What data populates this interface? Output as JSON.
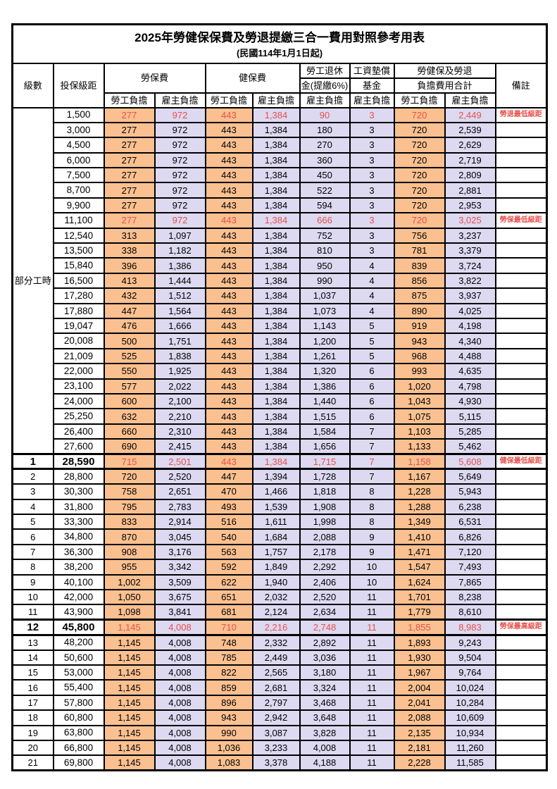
{
  "title": "2025年勞健保保費及勞退提繳三合一費用對照參考用表",
  "subtitle": "(民國114年1月1日起)",
  "colors": {
    "employee_bg": "#FAC090",
    "employer_bg": "#DCD9F1",
    "highlight_red": "#E8504B"
  },
  "header": {
    "level": "級數",
    "salary_bracket": "投保級距",
    "labor_insurance": "勞保費",
    "health_insurance": "健保費",
    "pension_line1": "勞工退休",
    "pension_line2": "金(提繳6%)",
    "wage_fund_line1": "工資墊償",
    "wage_fund_line2": "基金",
    "total_line1": "勞健保及勞退",
    "total_line2": "負擔費用合計",
    "remark": "備註",
    "employee_share": "勞工負擔",
    "employer_share": "雇主負擔"
  },
  "part_time_label": "部分工時",
  "rows": [
    {
      "level": "",
      "salary": "1,500",
      "labor_emp": "277",
      "labor_er": "972",
      "health_emp": "443",
      "health_er": "1,384",
      "pension": "90",
      "fund": "3",
      "total_emp": "720",
      "total_er": "2,449",
      "note": "勞退最低級距",
      "red": true,
      "bold": false,
      "thick_top": false,
      "thick_bottom": false
    },
    {
      "level": "",
      "salary": "3,000",
      "labor_emp": "277",
      "labor_er": "972",
      "health_emp": "443",
      "health_er": "1,384",
      "pension": "180",
      "fund": "3",
      "total_emp": "720",
      "total_er": "2,539",
      "note": "",
      "red": false,
      "bold": false,
      "thick_top": false,
      "thick_bottom": false
    },
    {
      "level": "",
      "salary": "4,500",
      "labor_emp": "277",
      "labor_er": "972",
      "health_emp": "443",
      "health_er": "1,384",
      "pension": "270",
      "fund": "3",
      "total_emp": "720",
      "total_er": "2,629",
      "note": "",
      "red": false,
      "bold": false,
      "thick_top": false,
      "thick_bottom": false
    },
    {
      "level": "",
      "salary": "6,000",
      "labor_emp": "277",
      "labor_er": "972",
      "health_emp": "443",
      "health_er": "1,384",
      "pension": "360",
      "fund": "3",
      "total_emp": "720",
      "total_er": "2,719",
      "note": "",
      "red": false,
      "bold": false,
      "thick_top": false,
      "thick_bottom": false
    },
    {
      "level": "",
      "salary": "7,500",
      "labor_emp": "277",
      "labor_er": "972",
      "health_emp": "443",
      "health_er": "1,384",
      "pension": "450",
      "fund": "3",
      "total_emp": "720",
      "total_er": "2,809",
      "note": "",
      "red": false,
      "bold": false,
      "thick_top": false,
      "thick_bottom": false
    },
    {
      "level": "",
      "salary": "8,700",
      "labor_emp": "277",
      "labor_er": "972",
      "health_emp": "443",
      "health_er": "1,384",
      "pension": "522",
      "fund": "3",
      "total_emp": "720",
      "total_er": "2,881",
      "note": "",
      "red": false,
      "bold": false,
      "thick_top": false,
      "thick_bottom": false
    },
    {
      "level": "",
      "salary": "9,900",
      "labor_emp": "277",
      "labor_er": "972",
      "health_emp": "443",
      "health_er": "1,384",
      "pension": "594",
      "fund": "3",
      "total_emp": "720",
      "total_er": "2,953",
      "note": "",
      "red": false,
      "bold": false,
      "thick_top": false,
      "thick_bottom": false
    },
    {
      "level": "",
      "salary": "11,100",
      "labor_emp": "277",
      "labor_er": "972",
      "health_emp": "443",
      "health_er": "1,384",
      "pension": "666",
      "fund": "3",
      "total_emp": "720",
      "total_er": "3,025",
      "note": "勞保最低級距",
      "red": true,
      "bold": false,
      "thick_top": false,
      "thick_bottom": false
    },
    {
      "level": "",
      "salary": "12,540",
      "labor_emp": "313",
      "labor_er": "1,097",
      "health_emp": "443",
      "health_er": "1,384",
      "pension": "752",
      "fund": "3",
      "total_emp": "756",
      "total_er": "3,237",
      "note": "",
      "red": false,
      "bold": false,
      "thick_top": false,
      "thick_bottom": false
    },
    {
      "level": "",
      "salary": "13,500",
      "labor_emp": "338",
      "labor_er": "1,182",
      "health_emp": "443",
      "health_er": "1,384",
      "pension": "810",
      "fund": "3",
      "total_emp": "781",
      "total_er": "3,379",
      "note": "",
      "red": false,
      "bold": false,
      "thick_top": false,
      "thick_bottom": false
    },
    {
      "level": "",
      "salary": "15,840",
      "labor_emp": "396",
      "labor_er": "1,386",
      "health_emp": "443",
      "health_er": "1,384",
      "pension": "950",
      "fund": "4",
      "total_emp": "839",
      "total_er": "3,724",
      "note": "",
      "red": false,
      "bold": false,
      "thick_top": false,
      "thick_bottom": false
    },
    {
      "level": "",
      "salary": "16,500",
      "labor_emp": "413",
      "labor_er": "1,444",
      "health_emp": "443",
      "health_er": "1,384",
      "pension": "990",
      "fund": "4",
      "total_emp": "856",
      "total_er": "3,822",
      "note": "",
      "red": false,
      "bold": false,
      "thick_top": false,
      "thick_bottom": false
    },
    {
      "level": "",
      "salary": "17,280",
      "labor_emp": "432",
      "labor_er": "1,512",
      "health_emp": "443",
      "health_er": "1,384",
      "pension": "1,037",
      "fund": "4",
      "total_emp": "875",
      "total_er": "3,937",
      "note": "",
      "red": false,
      "bold": false,
      "thick_top": false,
      "thick_bottom": false
    },
    {
      "level": "",
      "salary": "17,880",
      "labor_emp": "447",
      "labor_er": "1,564",
      "health_emp": "443",
      "health_er": "1,384",
      "pension": "1,073",
      "fund": "4",
      "total_emp": "890",
      "total_er": "4,025",
      "note": "",
      "red": false,
      "bold": false,
      "thick_top": false,
      "thick_bottom": false
    },
    {
      "level": "",
      "salary": "19,047",
      "labor_emp": "476",
      "labor_er": "1,666",
      "health_emp": "443",
      "health_er": "1,384",
      "pension": "1,143",
      "fund": "5",
      "total_emp": "919",
      "total_er": "4,198",
      "note": "",
      "red": false,
      "bold": false,
      "thick_top": false,
      "thick_bottom": false
    },
    {
      "level": "",
      "salary": "20,008",
      "labor_emp": "500",
      "labor_er": "1,751",
      "health_emp": "443",
      "health_er": "1,384",
      "pension": "1,200",
      "fund": "5",
      "total_emp": "943",
      "total_er": "4,340",
      "note": "",
      "red": false,
      "bold": false,
      "thick_top": false,
      "thick_bottom": false
    },
    {
      "level": "",
      "salary": "21,009",
      "labor_emp": "525",
      "labor_er": "1,838",
      "health_emp": "443",
      "health_er": "1,384",
      "pension": "1,261",
      "fund": "5",
      "total_emp": "968",
      "total_er": "4,488",
      "note": "",
      "red": false,
      "bold": false,
      "thick_top": false,
      "thick_bottom": false
    },
    {
      "level": "",
      "salary": "22,000",
      "labor_emp": "550",
      "labor_er": "1,925",
      "health_emp": "443",
      "health_er": "1,384",
      "pension": "1,320",
      "fund": "6",
      "total_emp": "993",
      "total_er": "4,635",
      "note": "",
      "red": false,
      "bold": false,
      "thick_top": false,
      "thick_bottom": false
    },
    {
      "level": "",
      "salary": "23,100",
      "labor_emp": "577",
      "labor_er": "2,022",
      "health_emp": "443",
      "health_er": "1,384",
      "pension": "1,386",
      "fund": "6",
      "total_emp": "1,020",
      "total_er": "4,798",
      "note": "",
      "red": false,
      "bold": false,
      "thick_top": false,
      "thick_bottom": false
    },
    {
      "level": "",
      "salary": "24,000",
      "labor_emp": "600",
      "labor_er": "2,100",
      "health_emp": "443",
      "health_er": "1,384",
      "pension": "1,440",
      "fund": "6",
      "total_emp": "1,043",
      "total_er": "4,930",
      "note": "",
      "red": false,
      "bold": false,
      "thick_top": false,
      "thick_bottom": false
    },
    {
      "level": "",
      "salary": "25,250",
      "labor_emp": "632",
      "labor_er": "2,210",
      "health_emp": "443",
      "health_er": "1,384",
      "pension": "1,515",
      "fund": "6",
      "total_emp": "1,075",
      "total_er": "5,115",
      "note": "",
      "red": false,
      "bold": false,
      "thick_top": false,
      "thick_bottom": false
    },
    {
      "level": "",
      "salary": "26,400",
      "labor_emp": "660",
      "labor_er": "2,310",
      "health_emp": "443",
      "health_er": "1,384",
      "pension": "1,584",
      "fund": "7",
      "total_emp": "1,103",
      "total_er": "5,285",
      "note": "",
      "red": false,
      "bold": false,
      "thick_top": false,
      "thick_bottom": false
    },
    {
      "level": "",
      "salary": "27,600",
      "labor_emp": "690",
      "labor_er": "2,415",
      "health_emp": "443",
      "health_er": "1,384",
      "pension": "1,656",
      "fund": "7",
      "total_emp": "1,133",
      "total_er": "5,462",
      "note": "",
      "red": false,
      "bold": false,
      "thick_top": false,
      "thick_bottom": false
    },
    {
      "level": "1",
      "salary": "28,590",
      "labor_emp": "715",
      "labor_er": "2,501",
      "health_emp": "443",
      "health_er": "1,384",
      "pension": "1,715",
      "fund": "7",
      "total_emp": "1,158",
      "total_er": "5,608",
      "note": "健保最低級距",
      "red": true,
      "bold": true,
      "thick_top": true,
      "thick_bottom": true
    },
    {
      "level": "2",
      "salary": "28,800",
      "labor_emp": "720",
      "labor_er": "2,520",
      "health_emp": "447",
      "health_er": "1,394",
      "pension": "1,728",
      "fund": "7",
      "total_emp": "1,167",
      "total_er": "5,649",
      "note": "",
      "red": false,
      "bold": false,
      "thick_top": false,
      "thick_bottom": false
    },
    {
      "level": "3",
      "salary": "30,300",
      "labor_emp": "758",
      "labor_er": "2,651",
      "health_emp": "470",
      "health_er": "1,466",
      "pension": "1,818",
      "fund": "8",
      "total_emp": "1,228",
      "total_er": "5,943",
      "note": "",
      "red": false,
      "bold": false,
      "thick_top": false,
      "thick_bottom": false
    },
    {
      "level": "4",
      "salary": "31,800",
      "labor_emp": "795",
      "labor_er": "2,783",
      "health_emp": "493",
      "health_er": "1,539",
      "pension": "1,908",
      "fund": "8",
      "total_emp": "1,288",
      "total_er": "6,238",
      "note": "",
      "red": false,
      "bold": false,
      "thick_top": false,
      "thick_bottom": false
    },
    {
      "level": "5",
      "salary": "33,300",
      "labor_emp": "833",
      "labor_er": "2,914",
      "health_emp": "516",
      "health_er": "1,611",
      "pension": "1,998",
      "fund": "8",
      "total_emp": "1,349",
      "total_er": "6,531",
      "note": "",
      "red": false,
      "bold": false,
      "thick_top": false,
      "thick_bottom": false
    },
    {
      "level": "6",
      "salary": "34,800",
      "labor_emp": "870",
      "labor_er": "3,045",
      "health_emp": "540",
      "health_er": "1,684",
      "pension": "2,088",
      "fund": "9",
      "total_emp": "1,410",
      "total_er": "6,826",
      "note": "",
      "red": false,
      "bold": false,
      "thick_top": false,
      "thick_bottom": false
    },
    {
      "level": "7",
      "salary": "36,300",
      "labor_emp": "908",
      "labor_er": "3,176",
      "health_emp": "563",
      "health_er": "1,757",
      "pension": "2,178",
      "fund": "9",
      "total_emp": "1,471",
      "total_er": "7,120",
      "note": "",
      "red": false,
      "bold": false,
      "thick_top": false,
      "thick_bottom": false
    },
    {
      "level": "8",
      "salary": "38,200",
      "labor_emp": "955",
      "labor_er": "3,342",
      "health_emp": "592",
      "health_er": "1,849",
      "pension": "2,292",
      "fund": "10",
      "total_emp": "1,547",
      "total_er": "7,493",
      "note": "",
      "red": false,
      "bold": false,
      "thick_top": false,
      "thick_bottom": false
    },
    {
      "level": "9",
      "salary": "40,100",
      "labor_emp": "1,002",
      "labor_er": "3,509",
      "health_emp": "622",
      "health_er": "1,940",
      "pension": "2,406",
      "fund": "10",
      "total_emp": "1,624",
      "total_er": "7,865",
      "note": "",
      "red": false,
      "bold": false,
      "thick_top": false,
      "thick_bottom": false
    },
    {
      "level": "10",
      "salary": "42,000",
      "labor_emp": "1,050",
      "labor_er": "3,675",
      "health_emp": "651",
      "health_er": "2,032",
      "pension": "2,520",
      "fund": "11",
      "total_emp": "1,701",
      "total_er": "8,238",
      "note": "",
      "red": false,
      "bold": false,
      "thick_top": false,
      "thick_bottom": false
    },
    {
      "level": "11",
      "salary": "43,900",
      "labor_emp": "1,098",
      "labor_er": "3,841",
      "health_emp": "681",
      "health_er": "2,124",
      "pension": "2,634",
      "fund": "11",
      "total_emp": "1,779",
      "total_er": "8,610",
      "note": "",
      "red": false,
      "bold": false,
      "thick_top": false,
      "thick_bottom": false
    },
    {
      "level": "12",
      "salary": "45,800",
      "labor_emp": "1,145",
      "labor_er": "4,008",
      "health_emp": "710",
      "health_er": "2,216",
      "pension": "2,748",
      "fund": "11",
      "total_emp": "1,855",
      "total_er": "8,983",
      "note": "勞保最高級距",
      "red": true,
      "bold": true,
      "thick_top": true,
      "thick_bottom": true
    },
    {
      "level": "13",
      "salary": "48,200",
      "labor_emp": "1,145",
      "labor_er": "4,008",
      "health_emp": "748",
      "health_er": "2,332",
      "pension": "2,892",
      "fund": "11",
      "total_emp": "1,893",
      "total_er": "9,243",
      "note": "",
      "red": false,
      "bold": false,
      "thick_top": false,
      "thick_bottom": false
    },
    {
      "level": "14",
      "salary": "50,600",
      "labor_emp": "1,145",
      "labor_er": "4,008",
      "health_emp": "785",
      "health_er": "2,449",
      "pension": "3,036",
      "fund": "11",
      "total_emp": "1,930",
      "total_er": "9,504",
      "note": "",
      "red": false,
      "bold": false,
      "thick_top": false,
      "thick_bottom": false
    },
    {
      "level": "15",
      "salary": "53,000",
      "labor_emp": "1,145",
      "labor_er": "4,008",
      "health_emp": "822",
      "health_er": "2,565",
      "pension": "3,180",
      "fund": "11",
      "total_emp": "1,967",
      "total_er": "9,764",
      "note": "",
      "red": false,
      "bold": false,
      "thick_top": false,
      "thick_bottom": false
    },
    {
      "level": "16",
      "salary": "55,400",
      "labor_emp": "1,145",
      "labor_er": "4,008",
      "health_emp": "859",
      "health_er": "2,681",
      "pension": "3,324",
      "fund": "11",
      "total_emp": "2,004",
      "total_er": "10,024",
      "note": "",
      "red": false,
      "bold": false,
      "thick_top": false,
      "thick_bottom": false
    },
    {
      "level": "17",
      "salary": "57,800",
      "labor_emp": "1,145",
      "labor_er": "4,008",
      "health_emp": "896",
      "health_er": "2,797",
      "pension": "3,468",
      "fund": "11",
      "total_emp": "2,041",
      "total_er": "10,284",
      "note": "",
      "red": false,
      "bold": false,
      "thick_top": false,
      "thick_bottom": false
    },
    {
      "level": "18",
      "salary": "60,800",
      "labor_emp": "1,145",
      "labor_er": "4,008",
      "health_emp": "943",
      "health_er": "2,942",
      "pension": "3,648",
      "fund": "11",
      "total_emp": "2,088",
      "total_er": "10,609",
      "note": "",
      "red": false,
      "bold": false,
      "thick_top": false,
      "thick_bottom": false
    },
    {
      "level": "19",
      "salary": "63,800",
      "labor_emp": "1,145",
      "labor_er": "4,008",
      "health_emp": "990",
      "health_er": "3,087",
      "pension": "3,828",
      "fund": "11",
      "total_emp": "2,135",
      "total_er": "10,934",
      "note": "",
      "red": false,
      "bold": false,
      "thick_top": false,
      "thick_bottom": false
    },
    {
      "level": "20",
      "salary": "66,800",
      "labor_emp": "1,145",
      "labor_er": "4,008",
      "health_emp": "1,036",
      "health_er": "3,233",
      "pension": "4,008",
      "fund": "11",
      "total_emp": "2,181",
      "total_er": "11,260",
      "note": "",
      "red": false,
      "bold": false,
      "thick_top": false,
      "thick_bottom": false
    },
    {
      "level": "21",
      "salary": "69,800",
      "labor_emp": "1,145",
      "labor_er": "4,008",
      "health_emp": "1,083",
      "health_er": "3,378",
      "pension": "4,188",
      "fund": "11",
      "total_emp": "2,228",
      "total_er": "11,585",
      "note": "",
      "red": false,
      "bold": false,
      "thick_top": false,
      "thick_bottom": false
    }
  ]
}
